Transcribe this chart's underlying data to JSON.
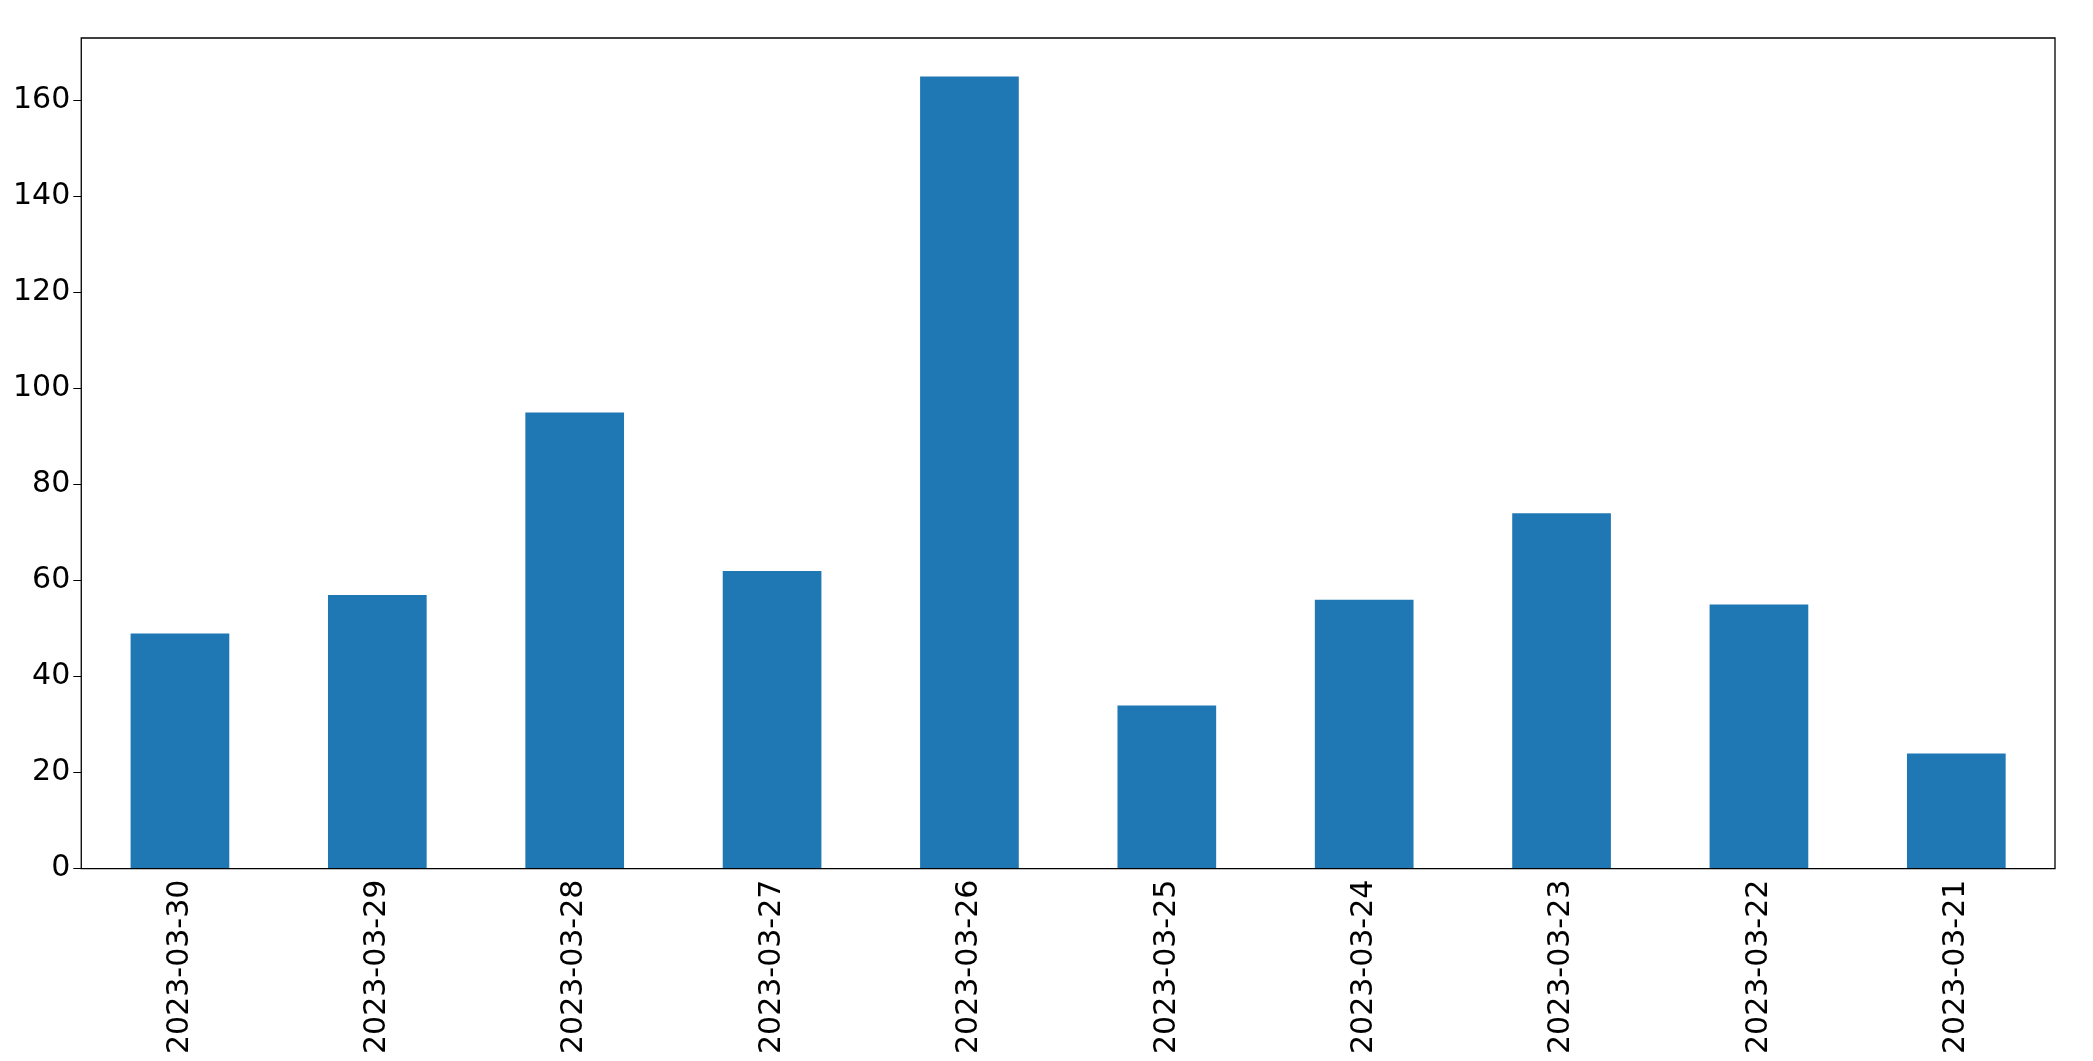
{
  "chart_data": {
    "type": "bar",
    "categories": [
      "2023-03-30",
      "2023-03-29",
      "2023-03-28",
      "2023-03-27",
      "2023-03-26",
      "2023-03-25",
      "2023-03-24",
      "2023-03-23",
      "2023-03-22",
      "2023-03-21"
    ],
    "values": [
      49,
      57,
      95,
      62,
      165,
      34,
      56,
      74,
      55,
      24
    ],
    "color": "#1f77b4",
    "ylim": [
      0,
      173
    ],
    "yticks": [
      0,
      20,
      40,
      60,
      80,
      100,
      120,
      140,
      160
    ],
    "grid": false,
    "legend": false
  }
}
